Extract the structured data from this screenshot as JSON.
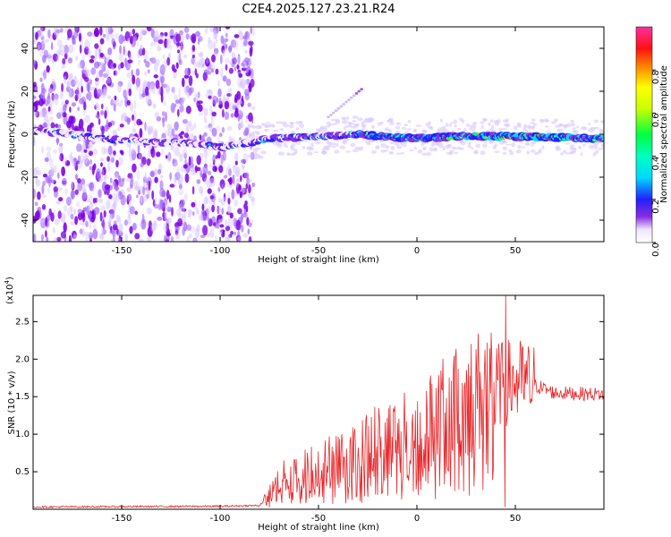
{
  "title": "C2E4.2025.127.23.21.R24",
  "chart_data": [
    {
      "type": "heatmap",
      "xlabel": "Height of straight line (km)",
      "ylabel": "Frequency (Hz)",
      "xlim": [
        -195,
        95
      ],
      "ylim": [
        -50,
        50
      ],
      "xticks": [
        -150,
        -100,
        -50,
        0,
        50
      ],
      "yticks": [
        -40,
        -20,
        0,
        20,
        40
      ],
      "colorbar": {
        "label": "Normalized spectral amplitude",
        "range": [
          0.0,
          1.0
        ],
        "ticks": [
          0.0,
          0.2,
          0.4,
          0.6,
          0.8
        ]
      },
      "description_trace_center_hz": [
        {
          "x": -195,
          "y": 2
        },
        {
          "x": -175,
          "y": 0
        },
        {
          "x": -150,
          "y": -3
        },
        {
          "x": -120,
          "y": -4
        },
        {
          "x": -100,
          "y": -6
        },
        {
          "x": -85,
          "y": -4
        },
        {
          "x": -75,
          "y": -2
        },
        {
          "x": -50,
          "y": -1
        },
        {
          "x": -30,
          "y": 0
        },
        {
          "x": 0,
          "y": -2
        },
        {
          "x": 20,
          "y": -1
        },
        {
          "x": 50,
          "y": -1
        },
        {
          "x": 95,
          "y": -2
        }
      ],
      "grid": false
    },
    {
      "type": "line",
      "xlabel": "Height of straight line (km)",
      "ylabel": "SNR (10 * v/v)",
      "yscale_label": "(x10",
      "yscale_exp": "4",
      "xlim": [
        -195,
        95
      ],
      "ylim": [
        0,
        28500
      ],
      "xticks": [
        -150,
        -100,
        -50,
        0,
        50
      ],
      "yticks": [
        5000,
        10000,
        15000,
        20000,
        25000
      ],
      "ytick_labels": [
        "0.5",
        "1.0",
        "1.5",
        "2.0",
        "2.5"
      ],
      "series": [
        {
          "color": "#e8262a",
          "envelope": [
            {
              "x": -195,
              "y": 300
            },
            {
              "x": -100,
              "y": 400
            },
            {
              "x": -80,
              "y": 500
            },
            {
              "x": -75,
              "y": 2000
            },
            {
              "x": -70,
              "y": 4000
            },
            {
              "x": -60,
              "y": 5000
            },
            {
              "x": -50,
              "y": 6000
            },
            {
              "x": -40,
              "y": 7000
            },
            {
              "x": -30,
              "y": 7500
            },
            {
              "x": -20,
              "y": 9500
            },
            {
              "x": -10,
              "y": 10000
            },
            {
              "x": 0,
              "y": 10500
            },
            {
              "x": 10,
              "y": 12500
            },
            {
              "x": 20,
              "y": 14000
            },
            {
              "x": 30,
              "y": 15500
            },
            {
              "x": 40,
              "y": 16500
            },
            {
              "x": 50,
              "y": 17000
            },
            {
              "x": 60,
              "y": 16500
            },
            {
              "x": 70,
              "y": 15500
            },
            {
              "x": 95,
              "y": 15300
            }
          ],
          "spike": {
            "x": 45,
            "y": 28500
          }
        }
      ],
      "grid": false
    }
  ]
}
